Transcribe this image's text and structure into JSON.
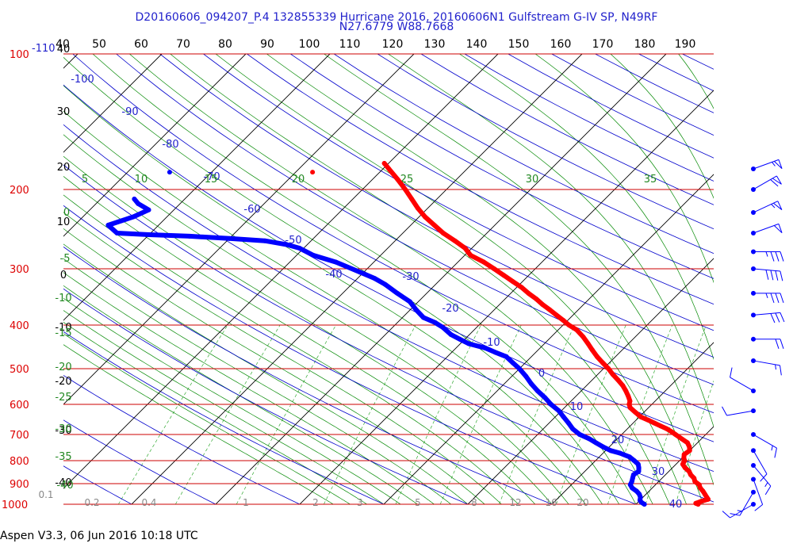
{
  "header": {
    "title_line1": "D20160606_094207_P.4 132855339 Hurricane 2016, 20160606N1 Gulfstream G-IV SP, N49RF",
    "title_line2": "N27.6779 W88.7668"
  },
  "footer": {
    "text": "Aspen V3.3, 06 Jun 2016  10:18 UTC"
  },
  "colors": {
    "temperature": "#ff0000",
    "dewpoint": "#0000ff",
    "isobar": "#cc0000",
    "isotherm": "#000000",
    "dry_adiabat": "#0000cc",
    "moist_adiabat": "#008800",
    "mixing_ratio": "#33aa33"
  },
  "chart_data": {
    "type": "line",
    "subtype": "skew-t log-p sounding",
    "pressure_labels": [
      {
        "p": 100,
        "label": "100"
      },
      {
        "p": 200,
        "label": "200"
      },
      {
        "p": 300,
        "label": "300"
      },
      {
        "p": 400,
        "label": "400"
      },
      {
        "p": 500,
        "label": "500"
      },
      {
        "p": 600,
        "label": "600"
      },
      {
        "p": 700,
        "label": "700"
      },
      {
        "p": 800,
        "label": "800"
      },
      {
        "p": 900,
        "label": "900"
      },
      {
        "p": 1000,
        "label": "1000"
      }
    ],
    "top_labels": [
      "40",
      "50",
      "60",
      "70",
      "80",
      "90",
      "100",
      "110",
      "120",
      "130",
      "140",
      "150",
      "160",
      "170",
      "180",
      "190"
    ],
    "left_labels": [
      "-110",
      "40",
      "30",
      "20",
      "10",
      "0",
      "-10",
      "-20",
      "-30",
      "-40"
    ],
    "isotherm_labels": [
      "-100",
      "-90",
      "-80",
      "-70",
      "-60",
      "-50",
      "-40",
      "-30",
      "-20",
      "-10",
      "0",
      "10",
      "20",
      "30",
      "40"
    ],
    "moist_labels": [
      "5",
      "10",
      "15",
      "20",
      "25",
      "30",
      "35"
    ],
    "theta_e_left_labels": [
      "0",
      "-5",
      "-10",
      "-15",
      "-20",
      "-25",
      "-30",
      "-35",
      "-40"
    ],
    "mixing_ratio_labels": [
      "0.1",
      "0.2",
      "0.4",
      "1",
      "2",
      "3",
      "5",
      "8",
      "12",
      "16",
      "20"
    ],
    "temperature": {
      "name": "Temperature",
      "points": [
        [
          1000,
          27.4
        ],
        [
          995,
          27.0
        ],
        [
          985,
          27.4
        ],
        [
          975,
          28.0
        ],
        [
          965,
          27.6
        ],
        [
          950,
          27.0
        ],
        [
          935,
          26.4
        ],
        [
          920,
          25.7
        ],
        [
          905,
          25.2
        ],
        [
          890,
          24.3
        ],
        [
          875,
          23.8
        ],
        [
          860,
          23.0
        ],
        [
          845,
          22.4
        ],
        [
          830,
          21.5
        ],
        [
          815,
          20.8
        ],
        [
          800,
          20.6
        ],
        [
          790,
          20.2
        ],
        [
          775,
          19.8
        ],
        [
          760,
          20.0
        ],
        [
          745,
          19.5
        ],
        [
          730,
          18.8
        ],
        [
          715,
          17.6
        ],
        [
          700,
          16.4
        ],
        [
          690,
          15.6
        ],
        [
          680,
          14.7
        ],
        [
          670,
          13.6
        ],
        [
          660,
          12.5
        ],
        [
          650,
          11.4
        ],
        [
          640,
          10.2
        ],
        [
          625,
          9.0
        ],
        [
          610,
          7.8
        ],
        [
          600,
          7.3
        ],
        [
          590,
          7.0
        ],
        [
          575,
          6.2
        ],
        [
          560,
          5.3
        ],
        [
          545,
          4.3
        ],
        [
          530,
          3.1
        ],
        [
          515,
          1.8
        ],
        [
          500,
          0.6
        ],
        [
          485,
          -0.8
        ],
        [
          470,
          -2.2
        ],
        [
          455,
          -3.5
        ],
        [
          440,
          -4.8
        ],
        [
          425,
          -6.2
        ],
        [
          410,
          -7.8
        ],
        [
          400,
          -9.3
        ],
        [
          390,
          -10.6
        ],
        [
          380,
          -12.0
        ],
        [
          370,
          -13.4
        ],
        [
          360,
          -14.9
        ],
        [
          350,
          -16.3
        ],
        [
          340,
          -17.9
        ],
        [
          330,
          -19.4
        ],
        [
          320,
          -21.2
        ],
        [
          310,
          -23.0
        ],
        [
          300,
          -24.9
        ],
        [
          290,
          -26.9
        ],
        [
          280,
          -29.3
        ],
        [
          270,
          -30.8
        ],
        [
          260,
          -32.9
        ],
        [
          250,
          -35.2
        ],
        [
          240,
          -37.2
        ],
        [
          230,
          -39.3
        ],
        [
          220,
          -41.2
        ],
        [
          210,
          -43.0
        ],
        [
          200,
          -44.9
        ],
        [
          190,
          -47.0
        ],
        [
          180,
          -49.3
        ],
        [
          175,
          -50.5
        ]
      ]
    },
    "dewpoint": {
      "name": "Dewpoint",
      "points": [
        [
          1000,
          21.0
        ],
        [
          990,
          20.4
        ],
        [
          980,
          20.0
        ],
        [
          965,
          19.7
        ],
        [
          950,
          19.2
        ],
        [
          935,
          18.5
        ],
        [
          920,
          17.6
        ],
        [
          905,
          17.0
        ],
        [
          890,
          16.8
        ],
        [
          875,
          16.5
        ],
        [
          860,
          16.2
        ],
        [
          845,
          16.4
        ],
        [
          830,
          16.0
        ],
        [
          815,
          15.5
        ],
        [
          800,
          14.6
        ],
        [
          785,
          13.6
        ],
        [
          770,
          12.0
        ],
        [
          760,
          10.6
        ],
        [
          745,
          9.2
        ],
        [
          730,
          7.9
        ],
        [
          715,
          6.6
        ],
        [
          700,
          5.0
        ],
        [
          680,
          3.5
        ],
        [
          660,
          2.3
        ],
        [
          640,
          1.0
        ],
        [
          620,
          -0.3
        ],
        [
          600,
          -2.0
        ],
        [
          580,
          -3.5
        ],
        [
          560,
          -5.2
        ],
        [
          540,
          -6.8
        ],
        [
          520,
          -8.3
        ],
        [
          500,
          -10.0
        ],
        [
          485,
          -11.5
        ],
        [
          470,
          -13.0
        ],
        [
          460,
          -14.8
        ],
        [
          450,
          -16.5
        ],
        [
          440,
          -19.0
        ],
        [
          430,
          -20.6
        ],
        [
          420,
          -22.2
        ],
        [
          405,
          -24.0
        ],
        [
          395,
          -25.5
        ],
        [
          385,
          -27.5
        ],
        [
          370,
          -29.3
        ],
        [
          355,
          -31.0
        ],
        [
          340,
          -33.5
        ],
        [
          325,
          -36.0
        ],
        [
          315,
          -38.0
        ],
        [
          305,
          -40.5
        ],
        [
          290,
          -44.5
        ],
        [
          280,
          -48.0
        ],
        [
          270,
          -50.5
        ],
        [
          265,
          -52.5
        ],
        [
          260,
          -55.5
        ],
        [
          257,
          -60.0
        ],
        [
          254,
          -65.0
        ],
        [
          252,
          -70.0
        ],
        [
          250,
          -74.0
        ],
        [
          240,
          -76.0
        ],
        [
          230,
          -74.0
        ],
        [
          222,
          -73.0
        ],
        [
          215,
          -75.0
        ],
        [
          210,
          -76.0
        ]
      ]
    },
    "wind_barbs": [
      {
        "p": 180,
        "speed_kt": 55,
        "dir_deg": 250
      },
      {
        "p": 200,
        "speed_kt": 60,
        "dir_deg": 240
      },
      {
        "p": 225,
        "speed_kt": 55,
        "dir_deg": 245
      },
      {
        "p": 250,
        "speed_kt": 50,
        "dir_deg": 250
      },
      {
        "p": 275,
        "speed_kt": 35,
        "dir_deg": 270
      },
      {
        "p": 300,
        "speed_kt": 40,
        "dir_deg": 275
      },
      {
        "p": 340,
        "speed_kt": 35,
        "dir_deg": 270
      },
      {
        "p": 380,
        "speed_kt": 30,
        "dir_deg": 265
      },
      {
        "p": 430,
        "speed_kt": 20,
        "dir_deg": 270
      },
      {
        "p": 480,
        "speed_kt": 15,
        "dir_deg": 280
      },
      {
        "p": 560,
        "speed_kt": 10,
        "dir_deg": 120
      },
      {
        "p": 620,
        "speed_kt": 10,
        "dir_deg": 80
      },
      {
        "p": 700,
        "speed_kt": 15,
        "dir_deg": 300
      },
      {
        "p": 760,
        "speed_kt": 10,
        "dir_deg": 330
      },
      {
        "p": 820,
        "speed_kt": 15,
        "dir_deg": 320
      },
      {
        "p": 880,
        "speed_kt": 10,
        "dir_deg": 340
      },
      {
        "p": 940,
        "speed_kt": 15,
        "dir_deg": 30
      },
      {
        "p": 1000,
        "speed_kt": 10,
        "dir_deg": 60
      }
    ],
    "annotations": [
      {
        "label": "dewpoint_marker",
        "p": 183,
        "t": -75
      },
      {
        "label": "temperature_marker",
        "p": 183,
        "t": -58
      }
    ]
  }
}
